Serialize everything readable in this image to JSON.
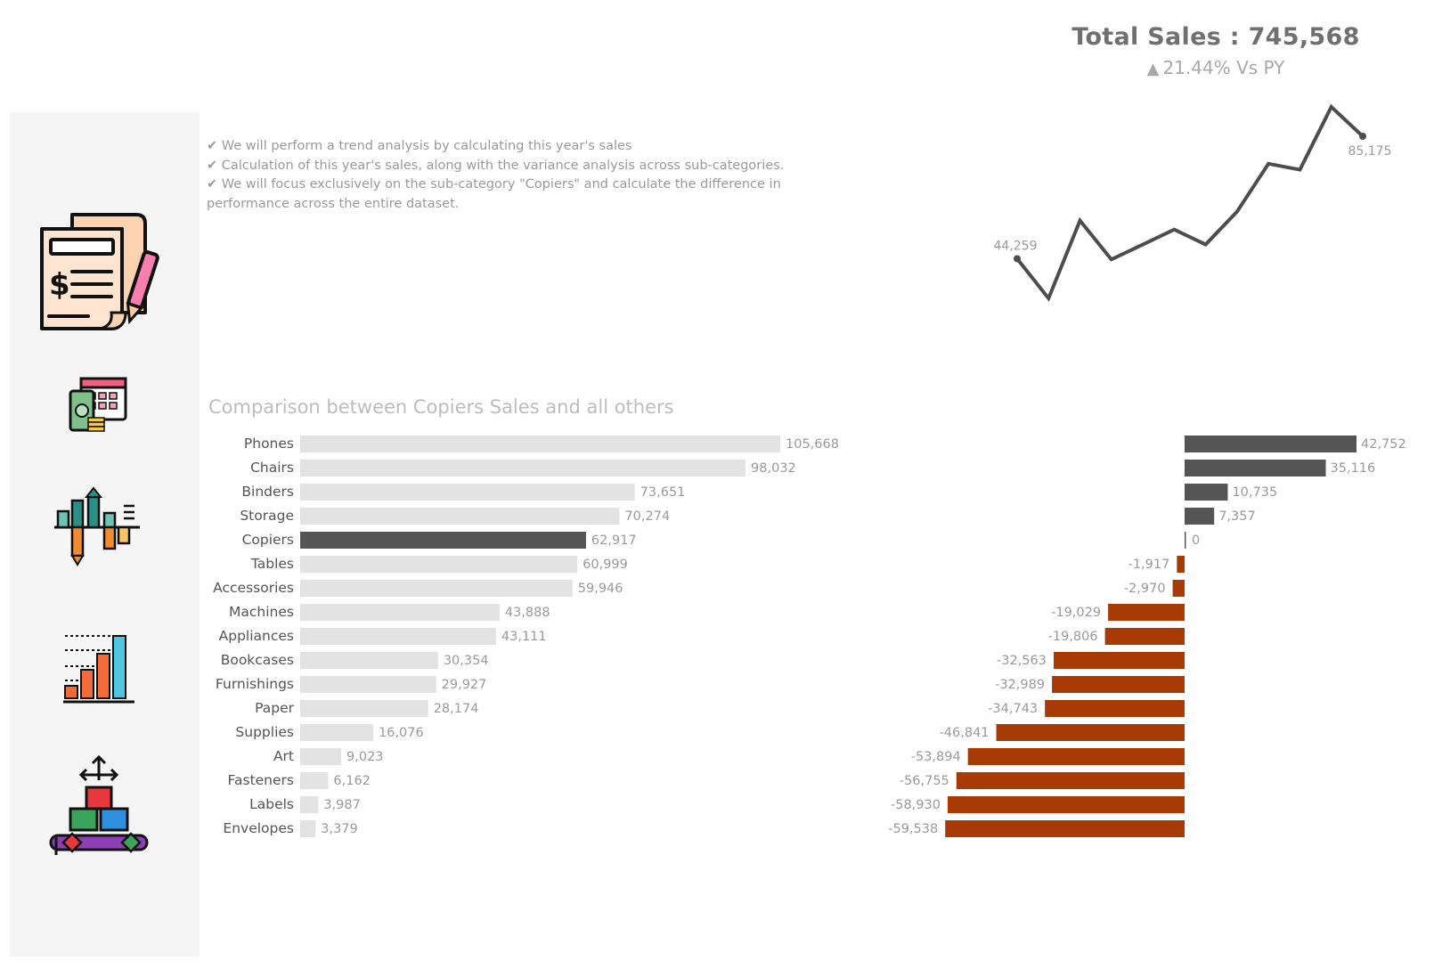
{
  "kpi": {
    "title": "Total  Sales : 745,568",
    "change": "21.44% Vs PY",
    "change_direction": "up",
    "change_icon": "triangle-up-icon"
  },
  "notes": [
    "✔ We will perform a trend analysis by calculating this year's sales",
    "✔ Calculation of this year's sales, along with the variance analysis across sub-categories.",
    "✔ We will focus exclusively on the sub-category \"Copiers\" and calculate the difference in performance across the entire dataset."
  ],
  "sidebar": {
    "icons": [
      "invoice-document-icon",
      "calendar-money-icon",
      "variance-chart-icon",
      "bar-growth-chart-icon",
      "stacked-boxes-icon"
    ]
  },
  "colors": {
    "bar_default": "#e3e3e3",
    "bar_highlight": "#555555",
    "diff_positive": "#555555",
    "diff_negative": "#a83a05",
    "label": "#9a9a9a",
    "category_label": "#555555",
    "sparkline": "#4d4d4d"
  },
  "chart_data": [
    {
      "type": "line",
      "title": "",
      "series": [
        {
          "values": [
            44259,
            31000,
            57000,
            44000,
            49000,
            54000,
            49000,
            60000,
            76000,
            74000,
            95000,
            85175
          ]
        }
      ],
      "labeled_points": [
        "44,259",
        "85,175"
      ],
      "grid": false
    },
    {
      "type": "bar",
      "orientation": "horizontal",
      "title": "Comparison between Copiers Sales and all others",
      "categories": [
        "Phones",
        "Chairs",
        "Binders",
        "Storage",
        "Copiers",
        "Tables",
        "Accessories",
        "Machines",
        "Appliances",
        "Bookcases",
        "Furnishings",
        "Paper",
        "Supplies",
        "Art",
        "Fasteners",
        "Labels",
        "Envelopes"
      ],
      "values": [
        105668,
        98032,
        73651,
        70274,
        62917,
        60999,
        59946,
        43888,
        43111,
        30354,
        29927,
        28174,
        16076,
        9023,
        6162,
        3987,
        3379
      ],
      "value_labels": [
        "105,668",
        "98,032",
        "73,651",
        "70,274",
        "62,917",
        "60,999",
        "59,946",
        "43,888",
        "43,111",
        "30,354",
        "29,927",
        "28,174",
        "16,076",
        "9,023",
        "6,162",
        "3,987",
        "3,379"
      ],
      "highlight": "Copiers",
      "grid": false
    },
    {
      "type": "bar",
      "orientation": "horizontal",
      "title": "",
      "categories": [
        "Phones",
        "Chairs",
        "Binders",
        "Storage",
        "Copiers",
        "Tables",
        "Accessories",
        "Machines",
        "Appliances",
        "Bookcases",
        "Furnishings",
        "Paper",
        "Supplies",
        "Art",
        "Fasteners",
        "Labels",
        "Envelopes"
      ],
      "values": [
        42752,
        35116,
        10735,
        7357,
        0,
        -1917,
        -2970,
        -19029,
        -19806,
        -32563,
        -32989,
        -34743,
        -46841,
        -53894,
        -56755,
        -58930,
        -59538
      ],
      "value_labels": [
        "42,752",
        "35,116",
        "10,735",
        "7,357",
        "0",
        "-1,917",
        "-2,970",
        "-19,029",
        "-19,806",
        "-32,563",
        "-32,989",
        "-34,743",
        "-46,841",
        "-53,894",
        "-56,755",
        "-58,930",
        "-59,538"
      ],
      "grid": false
    }
  ]
}
